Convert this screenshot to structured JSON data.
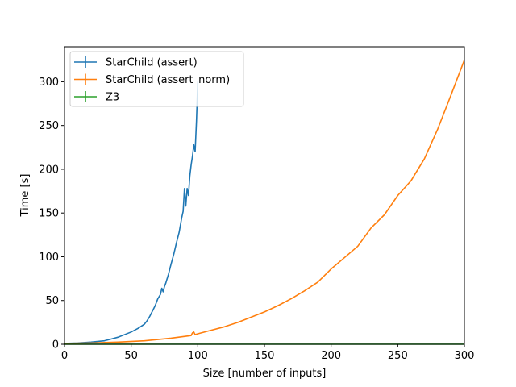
{
  "chart_data": {
    "type": "line",
    "xlabel": "Size [number of inputs]",
    "ylabel": "Time [s]",
    "xlim": [
      0,
      300
    ],
    "ylim": [
      0,
      340
    ],
    "xticks": [
      0,
      50,
      100,
      150,
      200,
      250,
      300
    ],
    "yticks": [
      0,
      50,
      100,
      150,
      200,
      250,
      300
    ],
    "grid": false,
    "legend": "top-left",
    "series": [
      {
        "name": "StarChild (assert)",
        "color": "#1f77b4",
        "x": [
          0,
          10,
          20,
          30,
          35,
          40,
          45,
          50,
          55,
          58,
          60,
          62,
          64,
          66,
          68,
          70,
          72,
          73,
          74,
          75,
          76,
          78,
          80,
          82,
          84,
          86,
          88,
          89,
          90,
          91,
          92,
          93,
          94,
          95,
          96,
          97,
          98,
          99,
          100
        ],
        "y": [
          1,
          1.5,
          2.5,
          4,
          6,
          8,
          11,
          14,
          18,
          21,
          23,
          27,
          32,
          38,
          44,
          52,
          57,
          64,
          60,
          66,
          70,
          80,
          92,
          103,
          116,
          128,
          145,
          152,
          178,
          158,
          178,
          170,
          192,
          205,
          215,
          228,
          220,
          255,
          300
        ]
      },
      {
        "name": "StarChild (assert_norm)",
        "color": "#ff7f0e",
        "x": [
          0,
          20,
          40,
          60,
          80,
          95,
          96,
          97,
          98,
          100,
          110,
          120,
          130,
          140,
          150,
          160,
          170,
          180,
          190,
          200,
          210,
          220,
          230,
          240,
          250,
          260,
          270,
          280,
          290,
          300
        ],
        "y": [
          1,
          1.5,
          2.5,
          4,
          7,
          10,
          13,
          14,
          11,
          12,
          16,
          20,
          25,
          31,
          37,
          44,
          52,
          61,
          71,
          86,
          99,
          112,
          133,
          148,
          170,
          187,
          212,
          246,
          285,
          325
        ]
      },
      {
        "name": "Z3",
        "color": "#2ca02c",
        "x": [
          0,
          300
        ],
        "y": [
          0.1,
          0.1
        ]
      }
    ]
  }
}
